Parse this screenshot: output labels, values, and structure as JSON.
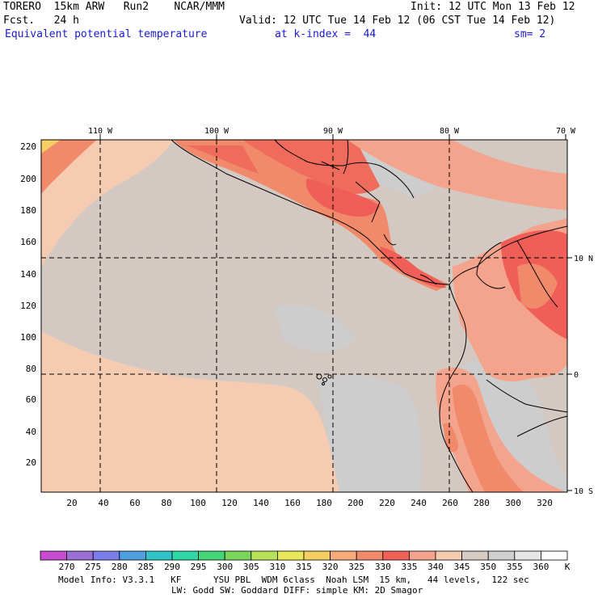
{
  "header": {
    "model": "TORERO",
    "resolution": "15km ARW",
    "run": "Run2",
    "org": "NCAR/MMM",
    "init": "Init: 12 UTC Mon 13 Feb 12",
    "fcst_label": "Fcst.",
    "fcst_value": "24 h",
    "valid": "Valid: 12 UTC Tue 14 Feb 12 (06 CST Tue 14 Feb 12)",
    "field": "Equivalent potential temperature",
    "level": "at k-index =  44",
    "smoothing": "sm= 2"
  },
  "map": {
    "lon_labels": [
      "110 W",
      "100 W",
      "90 W",
      "80 W",
      "70 W"
    ],
    "lat_labels": [
      "10 N",
      "0",
      "10 S"
    ],
    "y_ticks": [
      "220",
      "200",
      "180",
      "160",
      "140",
      "120",
      "100",
      "80",
      "60",
      "40",
      "20"
    ],
    "x_ticks": [
      "20",
      "40",
      "60",
      "80",
      "100",
      "120",
      "140",
      "160",
      "180",
      "200",
      "220",
      "240",
      "260",
      "280",
      "300",
      "320"
    ]
  },
  "colorbar": {
    "labels": [
      "270",
      "275",
      "280",
      "285",
      "290",
      "295",
      "300",
      "305",
      "310",
      "315",
      "320",
      "325",
      "330",
      "335",
      "340",
      "345",
      "350",
      "355",
      "360"
    ],
    "unit": "K",
    "colors": [
      "#c84bd0",
      "#9b6fd6",
      "#7b7ee8",
      "#4f9fe0",
      "#2fc4c8",
      "#2fd6a6",
      "#45d67a",
      "#7ad65a",
      "#b6e25a",
      "#e8e85a",
      "#f6cf62",
      "#f6ab78",
      "#f08a6a",
      "#f06058",
      "#f4a48c",
      "#f6cbb0",
      "#d6ccc4",
      "#d0d0d0",
      "#e6e6e6",
      "#ffffff"
    ]
  },
  "footer": {
    "line1": "Model Info: V3.3.1   KF      YSU PBL  WDM 6class  Noah LSM  15 km,   44 levels,  122 sec",
    "line2": "LW: Godd SW: Goddard DIFF: simple KM: 2D Smagor"
  }
}
